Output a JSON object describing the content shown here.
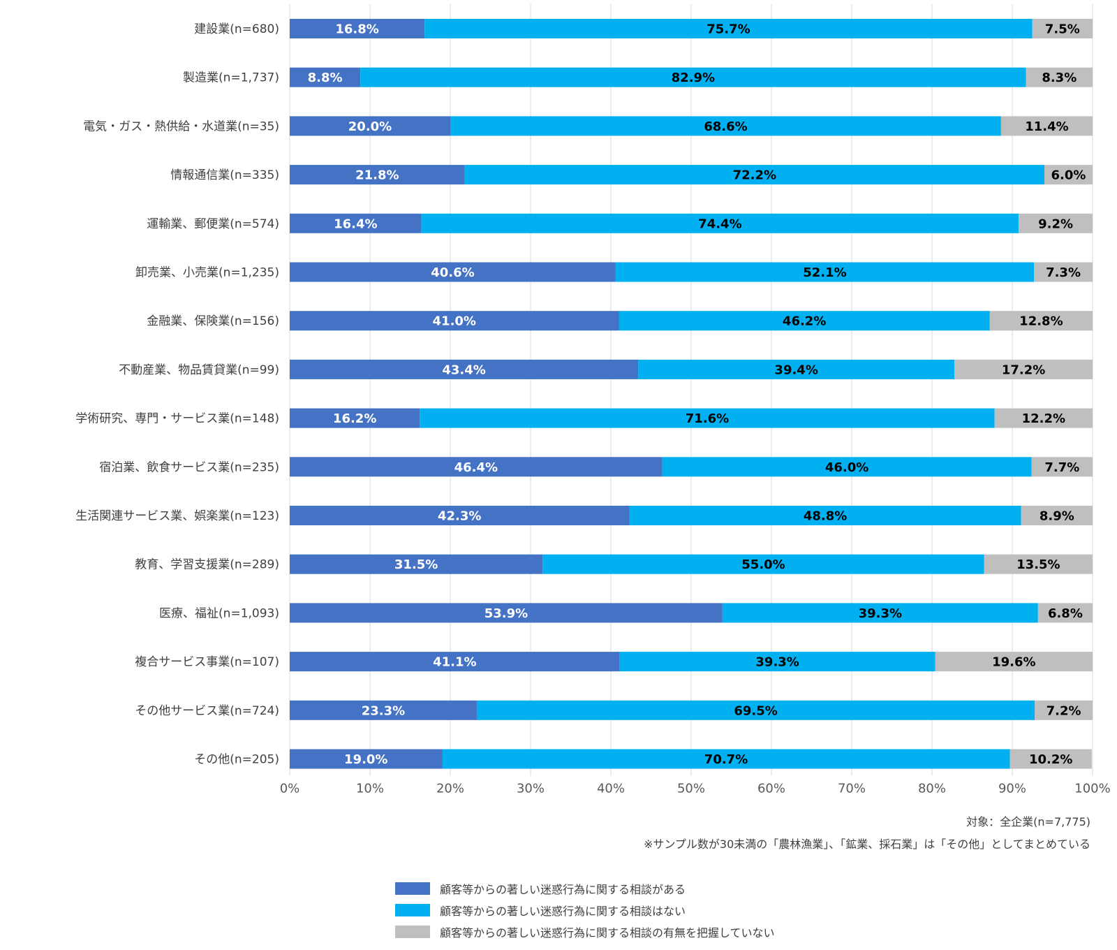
{
  "chart_data": {
    "type": "bar",
    "orientation": "horizontal",
    "stacked": true,
    "percent_stacked": true,
    "categories": [
      "建設業(n=680)",
      "製造業(n=1,737)",
      "電気・ガス・熱供給・水道業(n=35)",
      "情報通信業(n=335)",
      "運輸業、郵便業(n=574)",
      "卸売業、小売業(n=1,235)",
      "金融業、保険業(n=156)",
      "不動産業、物品賃貸業(n=99)",
      "学術研究、専門・サービス業(n=148)",
      "宿泊業、飲食サービス業(n=235)",
      "生活関連サービス業、娯楽業(n=123)",
      "教育、学習支援業(n=289)",
      "医療、福祉(n=1,093)",
      "複合サービス事業(n=107)",
      "その他サービス業(n=724)",
      "その他(n=205)"
    ],
    "series": [
      {
        "name": "顧客等からの著しい迷惑行為に関する相談がある",
        "color": "#4472C4",
        "label_color": "#ffffff",
        "values": [
          16.8,
          8.8,
          20.0,
          21.8,
          16.4,
          40.6,
          41.0,
          43.4,
          16.2,
          46.4,
          42.3,
          31.5,
          53.9,
          41.1,
          23.3,
          19.0
        ],
        "labels": [
          "16.8%",
          "8.8%",
          "20.0%",
          "21.8%",
          "16.4%",
          "40.6%",
          "41.0%",
          "43.4%",
          "16.2%",
          "46.4%",
          "42.3%",
          "31.5%",
          "53.9%",
          "41.1%",
          "23.3%",
          "19.0%"
        ]
      },
      {
        "name": "顧客等からの著しい迷惑行為に関する相談はない",
        "color": "#00B0F0",
        "label_color": "#000000",
        "values": [
          75.7,
          82.9,
          68.6,
          72.2,
          74.4,
          52.1,
          46.2,
          39.4,
          71.6,
          46.0,
          48.8,
          55.0,
          39.3,
          39.3,
          69.5,
          70.7
        ],
        "labels": [
          "75.7%",
          "82.9%",
          "68.6%",
          "72.2%",
          "74.4%",
          "52.1%",
          "46.2%",
          "39.4%",
          "71.6%",
          "46.0%",
          "48.8%",
          "55.0%",
          "39.3%",
          "39.3%",
          "69.5%",
          "70.7%"
        ]
      },
      {
        "name": "顧客等からの著しい迷惑行為に関する相談の有無を把握していない",
        "color": "#BFBFBF",
        "label_color": "#000000",
        "values": [
          7.5,
          8.3,
          11.4,
          6.0,
          9.2,
          7.3,
          12.8,
          17.2,
          12.2,
          7.7,
          8.9,
          13.5,
          6.8,
          19.6,
          7.2,
          10.2
        ],
        "labels": [
          "7.5%",
          "8.3%",
          "11.4%",
          "6.0%",
          "9.2%",
          "7.3%",
          "12.8%",
          "17.2%",
          "12.2%",
          "7.7%",
          "8.9%",
          "13.5%",
          "6.8%",
          "19.6%",
          "7.2%",
          "10.2%"
        ]
      }
    ],
    "x_ticks": [
      "0%",
      "10%",
      "20%",
      "30%",
      "40%",
      "50%",
      "60%",
      "70%",
      "80%",
      "90%",
      "100%"
    ],
    "xlim": [
      0,
      100
    ],
    "grid": true,
    "gridline_color": "#D9D9D9",
    "legend_position": "bottom",
    "notes": [
      "対象：全企業(n=7,775)",
      "※サンプル数が30未満の「農林漁業」、「鉱業、採石業」は「その他」としてまとめている"
    ]
  }
}
